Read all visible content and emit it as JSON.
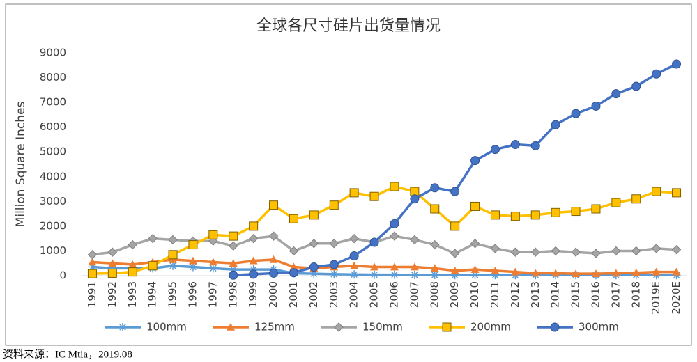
{
  "chart_data": {
    "type": "line",
    "title": "全球各尺寸硅片出货量情况",
    "y_label": "Million Square Inches",
    "source": "资料来源：IC Mtia，2019.08",
    "categories": [
      "1991",
      "1992",
      "1993",
      "1994",
      "1995",
      "1996",
      "1997",
      "1998",
      "1999",
      "2000",
      "2001",
      "2002",
      "2003",
      "2004",
      "2005",
      "2006",
      "2007",
      "2008",
      "2009",
      "2010",
      "2011",
      "2012",
      "2013",
      "2014",
      "2015",
      "2016",
      "2017",
      "2018",
      "2019E",
      "2020E"
    ],
    "series": [
      {
        "name": "100mm",
        "color": "#5b9bd5",
        "marker": "asterisk",
        "values": [
          350,
          300,
          300,
          300,
          400,
          350,
          300,
          250,
          250,
          250,
          100,
          80,
          60,
          50,
          40,
          40,
          30,
          30,
          20,
          30,
          20,
          20,
          20,
          20,
          20,
          20,
          20,
          20,
          20,
          20
        ]
      },
      {
        "name": "125mm",
        "color": "#ed7d31",
        "marker": "triangle",
        "values": [
          550,
          500,
          450,
          550,
          650,
          600,
          550,
          500,
          600,
          650,
          350,
          300,
          350,
          400,
          350,
          350,
          350,
          300,
          200,
          250,
          200,
          150,
          100,
          100,
          80,
          80,
          100,
          120,
          150,
          150
        ]
      },
      {
        "name": "150mm",
        "color": "#a5a5a5",
        "marker": "diamond",
        "values": [
          850,
          950,
          1250,
          1500,
          1450,
          1400,
          1400,
          1200,
          1500,
          1600,
          1000,
          1300,
          1300,
          1500,
          1350,
          1600,
          1450,
          1250,
          900,
          1300,
          1100,
          950,
          950,
          1000,
          950,
          900,
          1000,
          1000,
          1100,
          1050
        ]
      },
      {
        "name": "200mm",
        "color": "#ffc000",
        "marker": "square",
        "values": [
          80,
          100,
          150,
          400,
          850,
          1250,
          1650,
          1600,
          2000,
          2850,
          2300,
          2450,
          2850,
          3350,
          3200,
          3600,
          3400,
          2700,
          2000,
          2800,
          2450,
          2400,
          2450,
          2550,
          2600,
          2700,
          2950,
          3100,
          3400,
          3350
        ]
      },
      {
        "name": "300mm",
        "color": "#4472c4",
        "marker": "circle",
        "values": [
          null,
          null,
          null,
          null,
          null,
          null,
          null,
          20,
          60,
          100,
          120,
          350,
          450,
          800,
          1350,
          2100,
          3100,
          3550,
          3400,
          4650,
          5100,
          5300,
          5250,
          6100,
          6550,
          6850,
          7350,
          7650,
          8150,
          8550
        ]
      }
    ],
    "ylim": [
      0,
      9000
    ],
    "yticks": [
      0,
      1000,
      2000,
      3000,
      4000,
      5000,
      6000,
      7000,
      8000,
      9000
    ],
    "grid": false,
    "legend": "bottom"
  }
}
